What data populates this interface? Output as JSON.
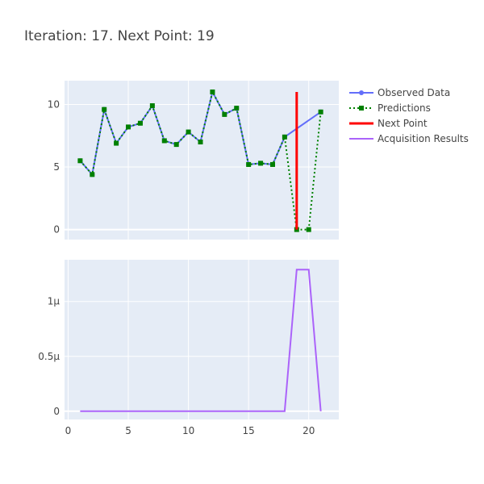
{
  "chart_data": [
    {
      "type": "line",
      "title": "Iteration: 17. Next Point: 19",
      "xlim": [
        -0.3,
        22.5
      ],
      "ylim": [
        -0.8,
        11.9
      ],
      "x_ticks": [
        0,
        5,
        10,
        15,
        20
      ],
      "y_ticks": [
        0,
        5,
        10
      ],
      "y_tick_labels": [
        "0",
        "5",
        "10"
      ],
      "grid": true,
      "legend_position": "top-right",
      "series": [
        {
          "name": "Observed Data",
          "color": "#636efa",
          "style": "lines+markers",
          "x": [
            1,
            2,
            3,
            4,
            5,
            6,
            7,
            8,
            9,
            10,
            11,
            12,
            13,
            14,
            15,
            16,
            17,
            18,
            21
          ],
          "y": [
            5.5,
            4.4,
            9.6,
            6.9,
            8.2,
            8.5,
            9.9,
            7.1,
            6.8,
            7.8,
            7.0,
            11.0,
            9.2,
            9.7,
            5.2,
            5.3,
            5.2,
            7.4,
            9.4
          ]
        },
        {
          "name": "Predictions",
          "color": "#008000",
          "style": "dotted+square-markers",
          "x": [
            1,
            2,
            3,
            4,
            5,
            6,
            7,
            8,
            9,
            10,
            11,
            12,
            13,
            14,
            15,
            16,
            17,
            18,
            19,
            20,
            21
          ],
          "y": [
            5.5,
            4.4,
            9.6,
            6.9,
            8.2,
            8.5,
            9.9,
            7.1,
            6.8,
            7.8,
            7.0,
            11.0,
            9.2,
            9.7,
            5.2,
            5.3,
            5.2,
            7.4,
            0,
            0,
            9.4
          ]
        },
        {
          "name": "Next Point",
          "color": "#ff0000",
          "style": "line",
          "x": [
            19,
            19
          ],
          "y": [
            0,
            11
          ]
        },
        {
          "name": "Acquisition Results",
          "color": "#ab63fa",
          "style": "line"
        }
      ]
    },
    {
      "type": "line",
      "xlim": [
        -0.3,
        22.5
      ],
      "ylim": [
        -7.5e-08,
        1.38e-06
      ],
      "x_ticks": [
        0,
        5,
        10,
        15,
        20
      ],
      "y_ticks": [
        0,
        5e-07,
        1e-06
      ],
      "y_tick_labels": [
        "0",
        "0.5μ",
        "1μ"
      ],
      "grid": true,
      "series": [
        {
          "name": "Acquisition Results",
          "color": "#ab63fa",
          "x": [
            1,
            2,
            3,
            4,
            5,
            6,
            7,
            8,
            9,
            10,
            11,
            12,
            13,
            14,
            15,
            16,
            17,
            18,
            19,
            20,
            21
          ],
          "y": [
            0,
            0,
            0,
            0,
            0,
            0,
            0,
            0,
            0,
            0,
            0,
            0,
            0,
            0,
            0,
            0,
            0,
            0,
            1.29e-06,
            1.29e-06,
            0
          ]
        }
      ]
    }
  ]
}
